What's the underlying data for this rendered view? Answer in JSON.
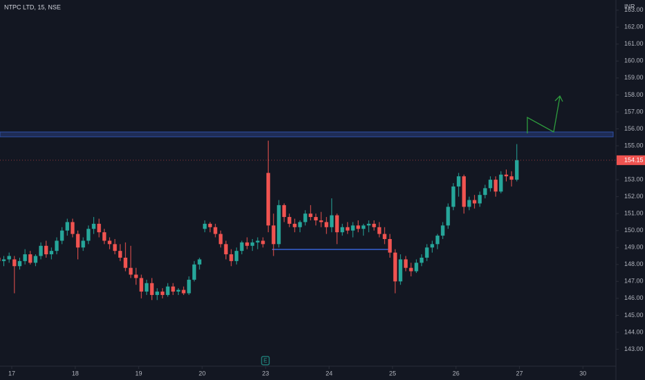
{
  "chart_data": {
    "type": "candlestick",
    "title": "NTPC LTD, 15, NSE",
    "currency": "INR",
    "earnings_marker": "E",
    "up_color": "#26a69a",
    "down_color": "#ef5350",
    "ylim": [
      142,
      163.6
    ],
    "yticks": [
      {
        "value": 143,
        "label": "143.00"
      },
      {
        "value": 144,
        "label": "144.00"
      },
      {
        "value": 145,
        "label": "145.00"
      },
      {
        "value": 146,
        "label": "146.00"
      },
      {
        "value": 147,
        "label": "147.00"
      },
      {
        "value": 148,
        "label": "148.00"
      },
      {
        "value": 149,
        "label": "149.00"
      },
      {
        "value": 150,
        "label": "150.00"
      },
      {
        "value": 151,
        "label": "151.00"
      },
      {
        "value": 152,
        "label": "152.00"
      },
      {
        "value": 153,
        "label": "153.00"
      },
      {
        "value": 154,
        "label": "154.00"
      },
      {
        "value": 155,
        "label": "155.00"
      },
      {
        "value": 156,
        "label": "156.00"
      },
      {
        "value": 157,
        "label": "157.00"
      },
      {
        "value": 158,
        "label": "158.00"
      },
      {
        "value": 159,
        "label": "159.00"
      },
      {
        "value": 160,
        "label": "160.00"
      },
      {
        "value": 161,
        "label": "161.00"
      },
      {
        "value": 162,
        "label": "162.00"
      },
      {
        "value": 163,
        "label": "163.00"
      }
    ],
    "last_price": 154.15,
    "days": [
      {
        "label": null,
        "candles": [
          [
            148.6,
            148.9,
            148.2,
            148.4
          ],
          [
            148.4,
            148.6,
            148.0,
            148.2
          ],
          [
            148.2,
            148.5,
            147.9,
            148.3
          ],
          [
            148.3,
            148.7,
            148.1,
            148.5
          ]
        ]
      },
      {
        "label": "17",
        "candles": [
          [
            148.3,
            148.5,
            146.3,
            147.9
          ],
          [
            147.9,
            148.4,
            147.7,
            148.2
          ],
          [
            148.2,
            148.9,
            148.0,
            148.6
          ],
          [
            148.6,
            148.8,
            148.0,
            148.1
          ],
          [
            148.1,
            148.6,
            147.9,
            148.5
          ],
          [
            148.5,
            149.3,
            148.3,
            149.1
          ],
          [
            149.1,
            149.4,
            148.4,
            148.6
          ],
          [
            148.6,
            149.0,
            148.3,
            148.8
          ],
          [
            148.8,
            149.6,
            148.6,
            149.4
          ],
          [
            149.4,
            150.2,
            149.2,
            150.0
          ],
          [
            150.0,
            150.7,
            149.7,
            150.5
          ],
          [
            150.5,
            150.7,
            149.6,
            149.8
          ]
        ]
      },
      {
        "label": "18",
        "candles": [
          [
            149.8,
            150.0,
            148.3,
            149.0
          ],
          [
            149.0,
            149.6,
            148.8,
            149.4
          ],
          [
            149.4,
            150.3,
            149.2,
            150.1
          ],
          [
            150.1,
            150.8,
            149.8,
            150.4
          ],
          [
            150.4,
            150.7,
            149.6,
            149.9
          ],
          [
            149.9,
            150.1,
            149.2,
            149.4
          ],
          [
            149.4,
            149.6,
            148.9,
            149.2
          ],
          [
            149.2,
            149.5,
            148.6,
            148.8
          ],
          [
            148.8,
            149.2,
            148.2,
            148.4
          ],
          [
            148.4,
            149.3,
            147.6,
            147.8
          ],
          [
            147.8,
            149.1,
            147.2,
            147.4
          ],
          [
            147.4,
            147.8,
            146.8,
            147.2
          ]
        ]
      },
      {
        "label": "19",
        "candles": [
          [
            147.2,
            147.4,
            146.0,
            146.4
          ],
          [
            146.4,
            147.1,
            146.2,
            146.9
          ],
          [
            146.9,
            147.2,
            145.9,
            146.2
          ],
          [
            146.2,
            146.6,
            145.9,
            146.4
          ],
          [
            146.4,
            146.6,
            146.0,
            146.2
          ],
          [
            146.2,
            146.9,
            146.1,
            146.7
          ],
          [
            146.7,
            146.9,
            146.2,
            146.4
          ],
          [
            146.4,
            146.6,
            146.2,
            146.5
          ],
          [
            146.5,
            146.7,
            146.2,
            146.3
          ],
          [
            146.3,
            147.3,
            146.2,
            147.1
          ],
          [
            147.1,
            148.2,
            147.0,
            148.0
          ],
          [
            148.0,
            148.4,
            147.7,
            148.3
          ]
        ]
      },
      {
        "label": "20",
        "candles": [
          [
            150.1,
            150.6,
            149.9,
            150.4
          ],
          [
            150.4,
            150.5,
            149.9,
            150.2
          ],
          [
            150.2,
            150.4,
            149.6,
            149.8
          ],
          [
            149.8,
            150.0,
            149.0,
            149.2
          ],
          [
            149.2,
            149.4,
            148.3,
            148.6
          ],
          [
            148.6,
            148.9,
            147.9,
            148.2
          ],
          [
            148.2,
            149.0,
            148.0,
            148.8
          ],
          [
            148.8,
            149.4,
            148.6,
            149.3
          ],
          [
            149.3,
            149.6,
            148.9,
            149.1
          ],
          [
            149.1,
            149.5,
            148.8,
            149.3
          ],
          [
            149.3,
            149.6,
            148.9,
            149.4
          ],
          [
            149.4,
            149.6,
            149.0,
            149.2
          ]
        ]
      },
      {
        "label": "23",
        "candles": [
          [
            153.4,
            155.3,
            149.9,
            150.3
          ],
          [
            150.3,
            151.0,
            148.5,
            149.2
          ],
          [
            149.2,
            151.8,
            149.0,
            151.5
          ],
          [
            151.5,
            151.6,
            150.5,
            150.8
          ],
          [
            150.8,
            151.0,
            150.2,
            150.4
          ],
          [
            150.4,
            150.7,
            149.9,
            150.2
          ],
          [
            150.2,
            150.6,
            149.9,
            150.5
          ],
          [
            150.5,
            151.2,
            150.3,
            151.0
          ],
          [
            151.0,
            151.5,
            150.6,
            150.8
          ],
          [
            150.8,
            151.0,
            150.3,
            150.6
          ],
          [
            150.6,
            151.1,
            150.2,
            150.5
          ],
          [
            150.5,
            150.8,
            149.8,
            150.2
          ]
        ]
      },
      {
        "label": "24",
        "candles": [
          [
            150.2,
            151.9,
            149.9,
            150.9
          ],
          [
            150.9,
            151.0,
            149.2,
            149.9
          ],
          [
            149.9,
            150.4,
            149.7,
            150.2
          ],
          [
            150.2,
            150.5,
            149.8,
            150.0
          ],
          [
            150.0,
            150.5,
            149.6,
            150.3
          ],
          [
            150.3,
            150.6,
            149.9,
            150.1
          ],
          [
            150.1,
            150.4,
            149.7,
            150.3
          ],
          [
            150.3,
            150.6,
            149.9,
            150.4
          ],
          [
            150.4,
            150.6,
            150.0,
            150.2
          ],
          [
            150.2,
            150.5,
            149.6,
            149.8
          ],
          [
            149.8,
            150.2,
            149.2,
            149.5
          ],
          [
            149.5,
            149.8,
            148.4,
            148.7
          ]
        ]
      },
      {
        "label": "25",
        "candles": [
          [
            148.7,
            148.9,
            146.3,
            147.0
          ],
          [
            147.0,
            148.6,
            146.8,
            148.3
          ],
          [
            148.3,
            148.5,
            147.6,
            147.8
          ],
          [
            147.8,
            148.1,
            147.3,
            147.6
          ],
          [
            147.6,
            148.3,
            147.5,
            148.1
          ],
          [
            148.1,
            148.6,
            147.9,
            148.4
          ],
          [
            148.4,
            149.2,
            148.2,
            149.0
          ],
          [
            149.0,
            149.4,
            148.7,
            149.2
          ],
          [
            149.2,
            149.8,
            148.9,
            149.7
          ],
          [
            149.7,
            150.5,
            149.5,
            150.3
          ],
          [
            150.3,
            151.6,
            150.1,
            151.4
          ],
          [
            151.4,
            152.8,
            151.2,
            152.6
          ]
        ]
      },
      {
        "label": "26",
        "candles": [
          [
            152.6,
            153.4,
            152.0,
            153.2
          ],
          [
            153.2,
            153.3,
            151.0,
            151.4
          ],
          [
            151.4,
            152.0,
            151.2,
            151.8
          ],
          [
            151.8,
            152.1,
            151.3,
            151.6
          ],
          [
            151.6,
            152.3,
            151.4,
            152.1
          ],
          [
            152.1,
            152.7,
            151.9,
            152.5
          ],
          [
            152.5,
            153.2,
            152.3,
            153.0
          ],
          [
            153.0,
            153.2,
            152.0,
            152.3
          ],
          [
            152.3,
            153.5,
            152.2,
            153.3
          ],
          [
            153.3,
            153.6,
            152.9,
            153.2
          ],
          [
            153.2,
            153.5,
            152.6,
            153.0
          ],
          [
            153.0,
            155.1,
            152.9,
            154.15
          ]
        ]
      },
      {
        "label": "27",
        "candles": []
      },
      {
        "label": "30",
        "candles": []
      }
    ]
  }
}
